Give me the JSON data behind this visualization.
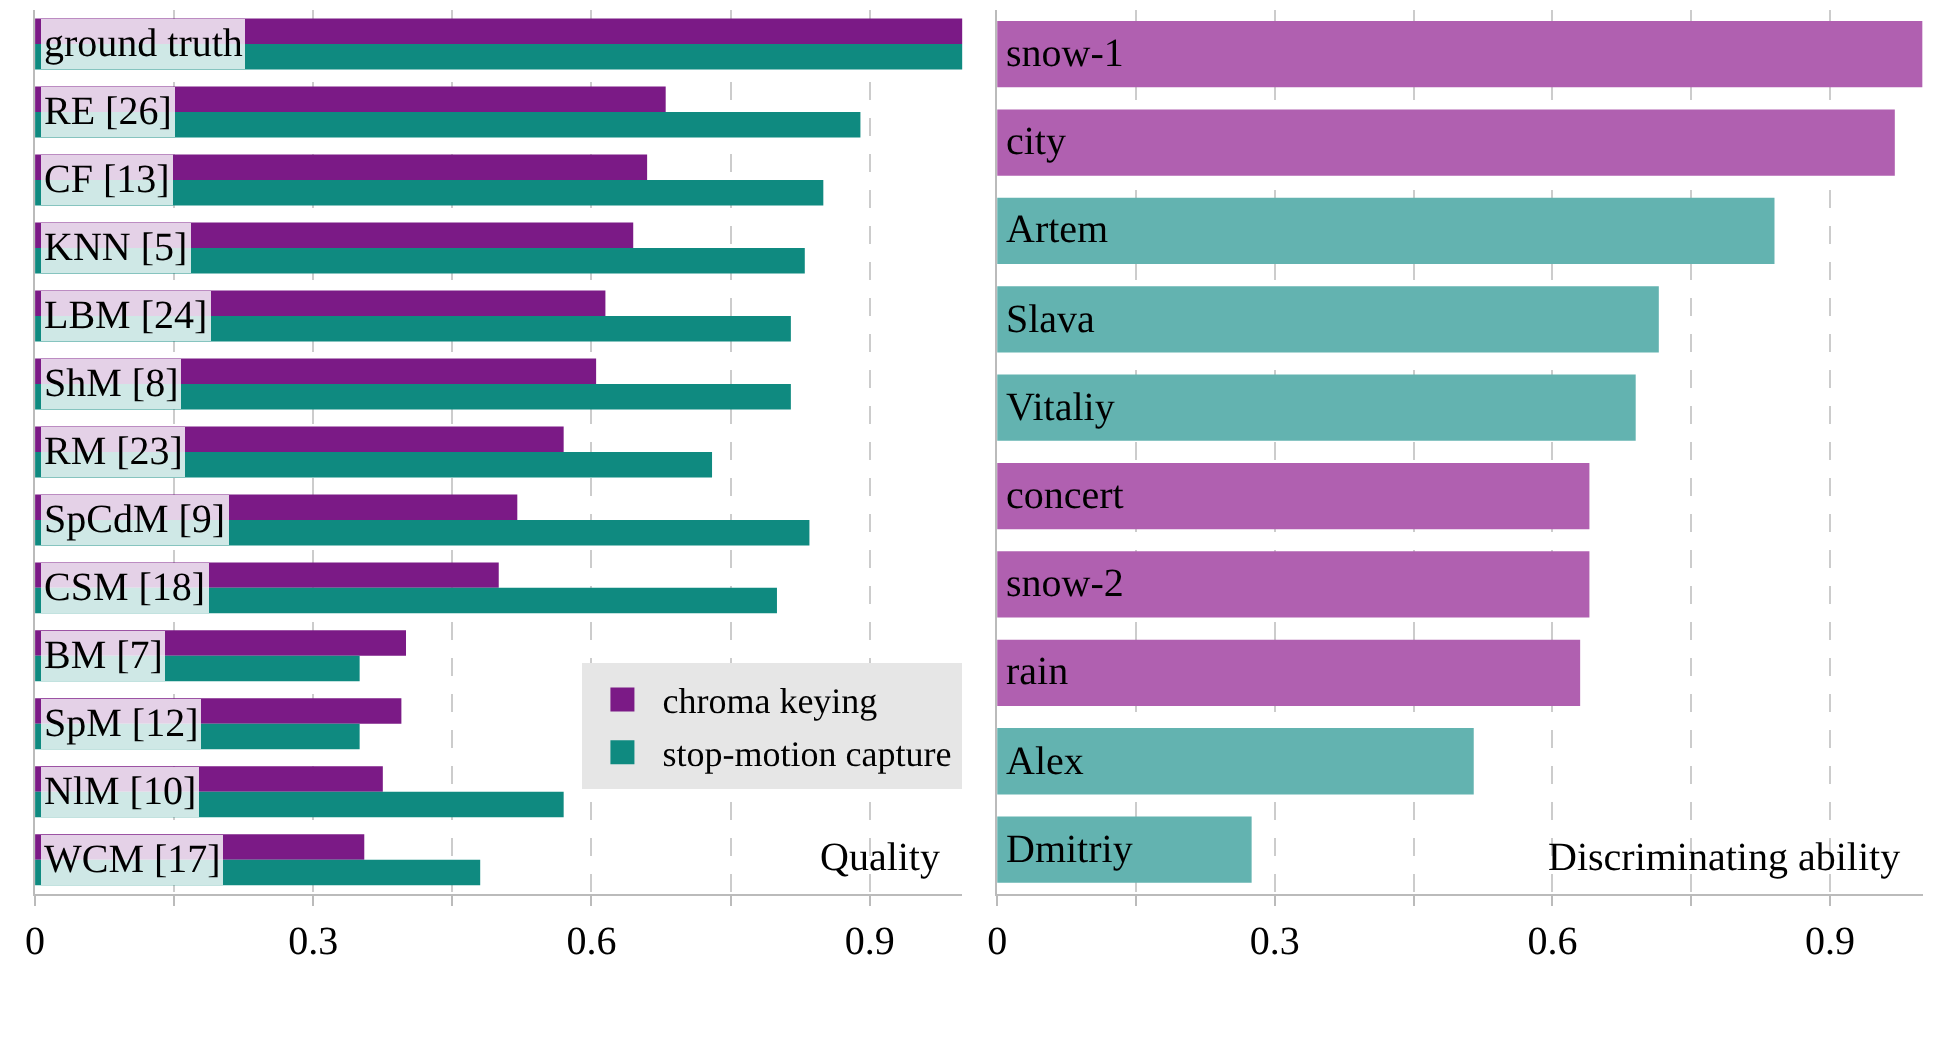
{
  "chart_data": [
    {
      "type": "bar",
      "orientation": "horizontal",
      "xlabel": "Quality",
      "categories": [
        "ground truth",
        "RE [26]",
        "CF [13]",
        "KNN [5]",
        "LBM [24]",
        "ShM [8]",
        "RM [23]",
        "SpCdM [9]",
        "CSM [18]",
        "BM [7]",
        "SpM [12]",
        "NlM [10]",
        "WCM [17]"
      ],
      "series": [
        {
          "name": "chroma keying",
          "color": "#7b1a86",
          "values": [
            1.0,
            0.68,
            0.66,
            0.645,
            0.615,
            0.605,
            0.57,
            0.52,
            0.5,
            0.4,
            0.395,
            0.375,
            0.355
          ]
        },
        {
          "name": "stop-motion capture",
          "color": "#0f8a80",
          "values": [
            1.0,
            0.89,
            0.85,
            0.83,
            0.815,
            0.815,
            0.73,
            0.835,
            0.8,
            0.35,
            0.35,
            0.57,
            0.48
          ]
        }
      ],
      "xlim": [
        0,
        1.0
      ],
      "xticks": [
        0,
        {
          "value": 0.15,
          "label": null
        },
        0.3,
        {
          "value": 0.45,
          "label": null
        },
        0.6,
        {
          "value": 0.75,
          "label": null
        },
        0.9
      ],
      "grid": "x",
      "legend": "bottom right"
    },
    {
      "type": "bar",
      "orientation": "horizontal",
      "xlabel": "Discriminating ability",
      "categories": [
        "snow-1",
        "city",
        "Artem",
        "Slava",
        "Vitaliy",
        "concert",
        "snow-2",
        "rain",
        "Alex",
        "Dmitriy"
      ],
      "values": [
        1.0,
        0.97,
        0.84,
        0.715,
        0.69,
        0.64,
        0.64,
        0.63,
        0.515,
        0.275
      ],
      "colors": [
        "#b060b0",
        "#b060b0",
        "#63b3b0",
        "#63b3b0",
        "#63b3b0",
        "#b060b0",
        "#b060b0",
        "#b060b0",
        "#63b3b0",
        "#63b3b0"
      ],
      "xlim": [
        0,
        1.0
      ],
      "xticks": [
        0,
        {
          "value": 0.15,
          "label": null
        },
        0.3,
        {
          "value": 0.45,
          "label": null
        },
        0.6,
        {
          "value": 0.75,
          "label": null
        },
        0.9
      ],
      "grid": "x"
    }
  ]
}
